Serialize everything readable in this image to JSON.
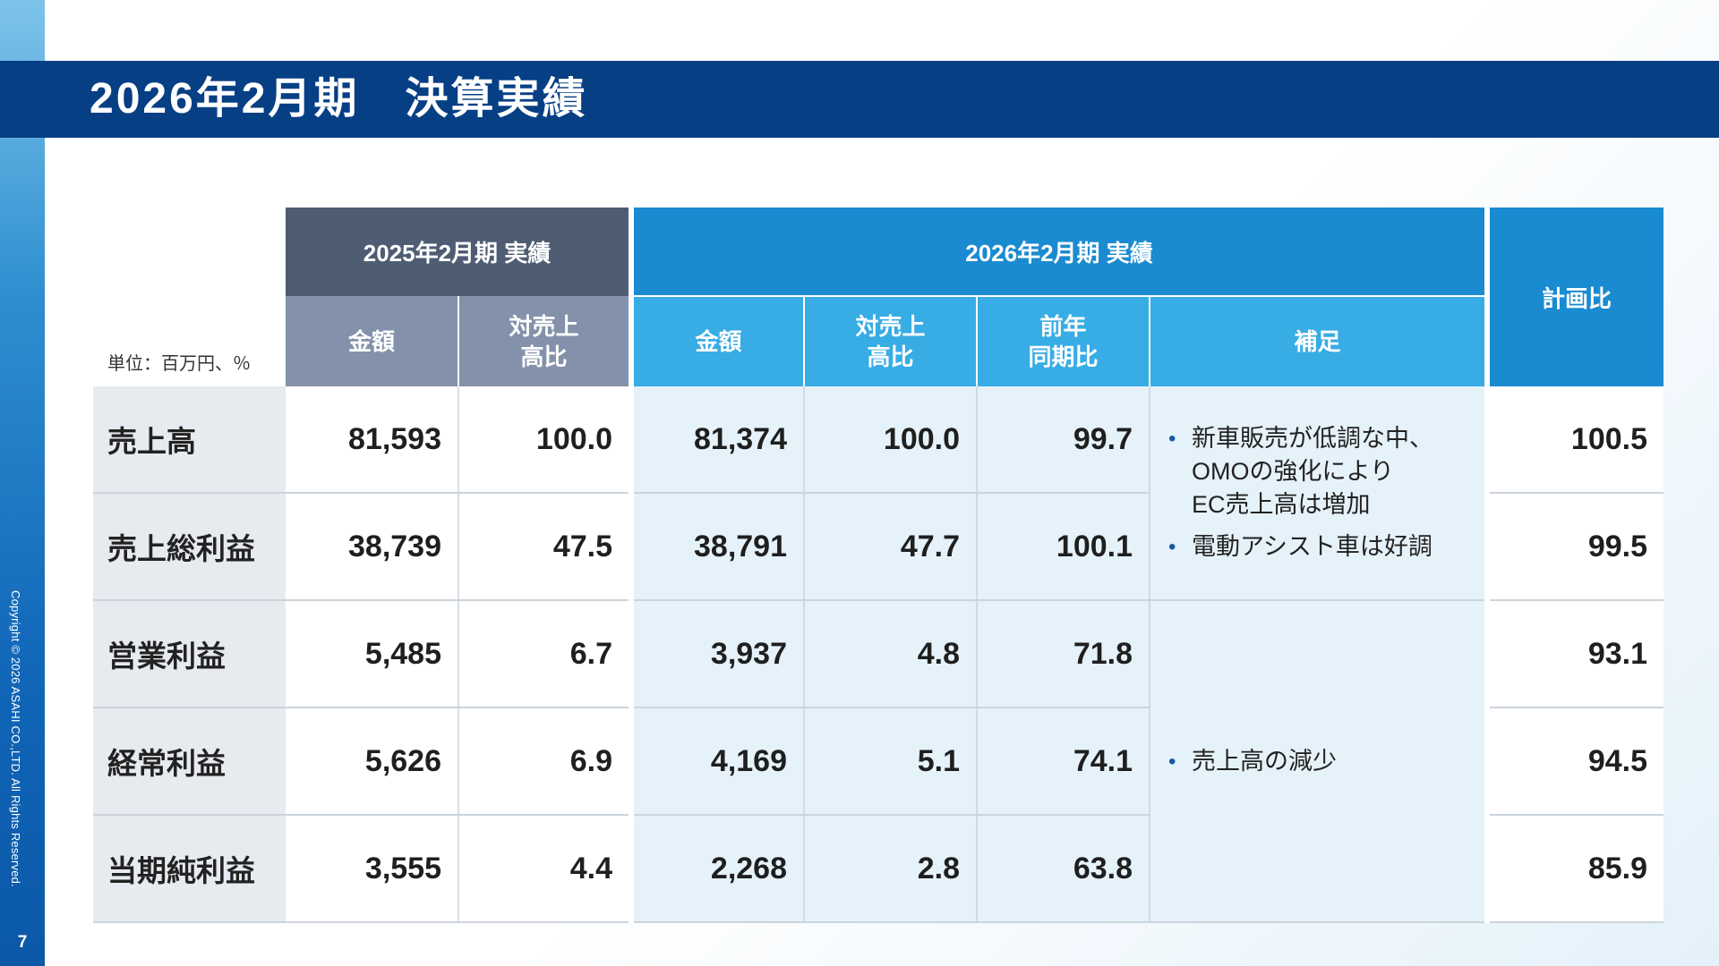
{
  "title": "2026年2月期　決算実績",
  "unit_label": "単位：百万円、％",
  "copyright": "Copyright © 2026 ASAHI CO.,LTD. All Rights Reserved.",
  "page_number": "7",
  "headers": {
    "prev_period": "2025年2月期 実績",
    "cur_period": "2026年2月期 実績",
    "plan_ratio": "計画比",
    "amount": "金額",
    "sales_ratio_1": "対売上",
    "sales_ratio_2": "高比",
    "yoy_1": "前年",
    "yoy_2": "同期比",
    "note": "補足"
  },
  "rows": [
    {
      "label": "売上高",
      "prev_amount": "81,593",
      "prev_ratio": "100.0",
      "cur_amount": "81,374",
      "cur_ratio": "100.0",
      "yoy": "99.7",
      "plan": "100.5"
    },
    {
      "label": "売上総利益",
      "prev_amount": "38,739",
      "prev_ratio": "47.5",
      "cur_amount": "38,791",
      "cur_ratio": "47.7",
      "yoy": "100.1",
      "plan": "99.5"
    },
    {
      "label": "営業利益",
      "prev_amount": "5,485",
      "prev_ratio": "6.7",
      "cur_amount": "3,937",
      "cur_ratio": "4.8",
      "yoy": "71.8",
      "plan": "93.1"
    },
    {
      "label": "経常利益",
      "prev_amount": "5,626",
      "prev_ratio": "6.9",
      "cur_amount": "4,169",
      "cur_ratio": "5.1",
      "yoy": "74.1",
      "plan": "94.5"
    },
    {
      "label": "当期純利益",
      "prev_amount": "3,555",
      "prev_ratio": "4.4",
      "cur_amount": "2,268",
      "cur_ratio": "2.8",
      "yoy": "63.8",
      "plan": "85.9"
    }
  ],
  "notes": {
    "group1": [
      "新車販売が低調な中、\nOMOの強化により\nEC売上高は増加",
      "電動アシスト車は好調"
    ],
    "group2": [
      "売上高の減少"
    ]
  }
}
